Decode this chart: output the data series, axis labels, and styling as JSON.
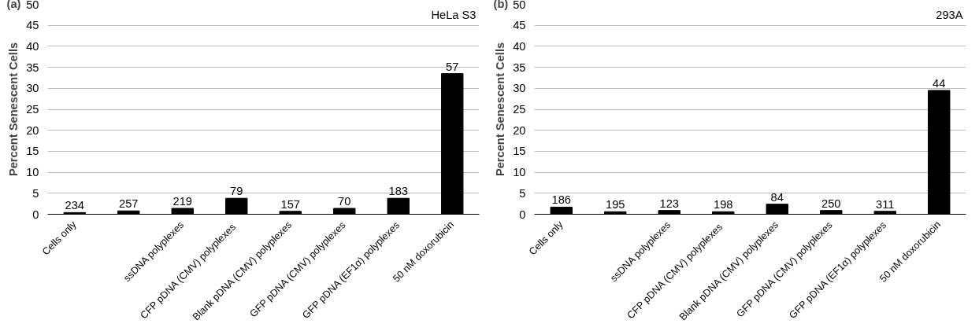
{
  "chart_data": [
    {
      "type": "bar",
      "ylabel": "Percent Senescent Cells",
      "annotations": [
        "(a)",
        "HeLa S3",
        {
          "text": "234",
          "x": "Cells only",
          "y": 0.4
        },
        {
          "text": "257",
          "y": 0.8
        },
        {
          "text": "219",
          "x": "ssDNA polyplexes",
          "y": 1.4
        },
        {
          "text": "79",
          "x": "CFP  pDNA (CMV) polyplexes",
          "y": 3.8
        },
        {
          "text": "157",
          "x": "Blank pDNA (CMV) polyplexes",
          "y": 0.7
        },
        {
          "text": "70",
          "x": "GFP pDNA (CMV) polyplexes",
          "y": 1.4
        },
        {
          "text": "183",
          "x": "GFP pDNA (EF1α) polyplexes",
          "y": 3.8
        },
        {
          "text": "57",
          "x": "50 nM doxorubicin",
          "y": 33.5
        }
      ],
      "categories": [
        "Cells only",
        null,
        "ssDNA polyplexes",
        "CFP  pDNA (CMV) polyplexes",
        "Blank pDNA (CMV) polyplexes",
        "GFP pDNA (CMV) polyplexes",
        "GFP pDNA (EF1α) polyplexes",
        "50 nM doxorubicin"
      ],
      "values": [
        0.4,
        0.8,
        1.4,
        3.8,
        0.7,
        1.4,
        3.8,
        33.5
      ],
      "color": "#000000",
      "ylim": [
        0,
        50
      ],
      "yticks": [
        0,
        5,
        10,
        15,
        20,
        25,
        30,
        35,
        40,
        45,
        50
      ],
      "grid": "y"
    },
    {
      "type": "bar",
      "ylabel": "Percent Senescent Cells",
      "annotations": [
        "(b)",
        "293A",
        {
          "text": "186",
          "x": "Cells only",
          "y": 1.7
        },
        {
          "text": "195",
          "y": 0.6
        },
        {
          "text": "123",
          "x": "ssDNA polyplexes",
          "y": 0.9
        },
        {
          "text": "198",
          "x": "CFP  pDNA (CMV) polyplexes",
          "y": 0.6
        },
        {
          "text": "84",
          "x": "Blank pDNA (CMV) polyplexes",
          "y": 2.4
        },
        {
          "text": "250",
          "x": "GFP pDNA (CMV) polyplexes",
          "y": 0.9
        },
        {
          "text": "311",
          "x": "GFP pDNA (EF1α) polyplexes",
          "y": 0.7
        },
        {
          "text": "44",
          "x": "50 nM doxorubicin",
          "y": 29.5
        }
      ],
      "categories": [
        "Cells only",
        null,
        "ssDNA polyplexes",
        "CFP  pDNA (CMV) polyplexes",
        "Blank pDNA (CMV) polyplexes",
        "GFP pDNA (CMV) polyplexes",
        "GFP pDNA (EF1α) polyplexes",
        "50 nM doxorubicin"
      ],
      "values": [
        1.7,
        0.6,
        0.9,
        0.6,
        2.4,
        0.9,
        0.7,
        29.5
      ],
      "color": "#000000",
      "ylim": [
        0,
        50
      ],
      "yticks": [
        0,
        5,
        10,
        15,
        20,
        25,
        30,
        35,
        40,
        45,
        50
      ],
      "grid": "y"
    }
  ]
}
